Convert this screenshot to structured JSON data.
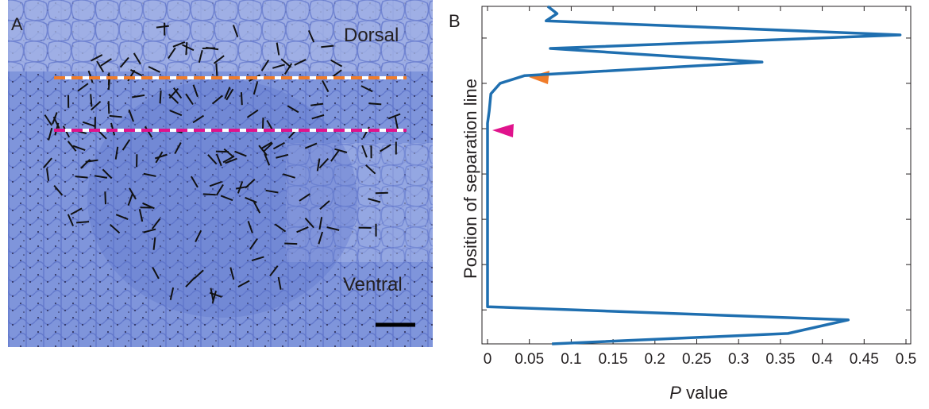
{
  "panel_a": {
    "label": "A",
    "dorsal": "Dorsal",
    "ventral": "Ventral"
  },
  "chart_data": {
    "type": "line",
    "panel_label": "B",
    "y_label": "Position of separation line",
    "x_label_var": "P",
    "x_label": "value",
    "color": "#1f6fb0",
    "x": [
      0.077,
      0.359,
      0.431,
      0,
      0,
      0.002,
      0.004,
      0.015,
      0.044,
      0.328,
      0.075,
      0.493,
      0.07,
      0.083,
      0.072
    ],
    "values": [
      0.25,
      0.48,
      0.78,
      1.07,
      5.12,
      5.39,
      5.77,
      6.0,
      6.17,
      6.47,
      6.77,
      7.07,
      7.38,
      7.54,
      7.7
    ],
    "xlim": [
      0,
      0.5
    ],
    "xticks": [
      0,
      0.05,
      0.1,
      0.15,
      0.2,
      0.25,
      0.3,
      0.35,
      0.4,
      0.45,
      0.5
    ],
    "ylim": [
      0.25,
      7.7
    ],
    "yticks": [
      1,
      2,
      3,
      4,
      5,
      6,
      7
    ]
  }
}
